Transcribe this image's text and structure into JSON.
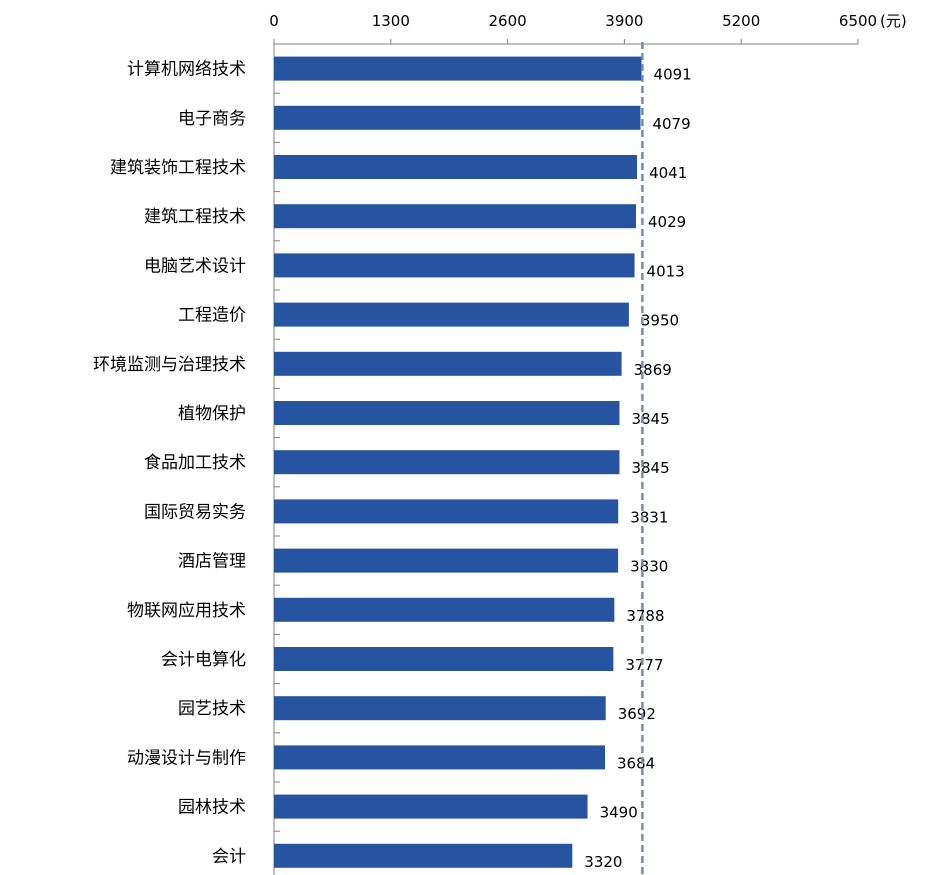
{
  "chart_data": {
    "type": "bar",
    "orientation": "horizontal",
    "categories": [
      "计算机网络技术",
      "电子商务",
      "建筑装饰工程技术",
      "建筑工程技术",
      "电脑艺术设计",
      "工程造价",
      "环境监测与治理技术",
      "植物保护",
      "食品加工技术",
      "国际贸易实务",
      "酒店管理",
      "物联网应用技术",
      "会计电算化",
      "园艺技术",
      "动漫设计与制作",
      "园林技术",
      "会计"
    ],
    "values": [
      4091,
      4079,
      4041,
      4029,
      4013,
      3950,
      3869,
      3845,
      3845,
      3831,
      3830,
      3788,
      3777,
      3692,
      3684,
      3490,
      3320
    ],
    "unit": "(元)",
    "xlim": [
      0,
      6500
    ],
    "xticks": [
      "0",
      "1300",
      "2600",
      "3900",
      "5200",
      "6500"
    ],
    "axis_position": "top",
    "reference_line": 4100,
    "grid": false,
    "legend": "none",
    "colors": {
      "bar": "#2654A1",
      "reference_line": "#7090B0",
      "axis": "#808080"
    }
  }
}
